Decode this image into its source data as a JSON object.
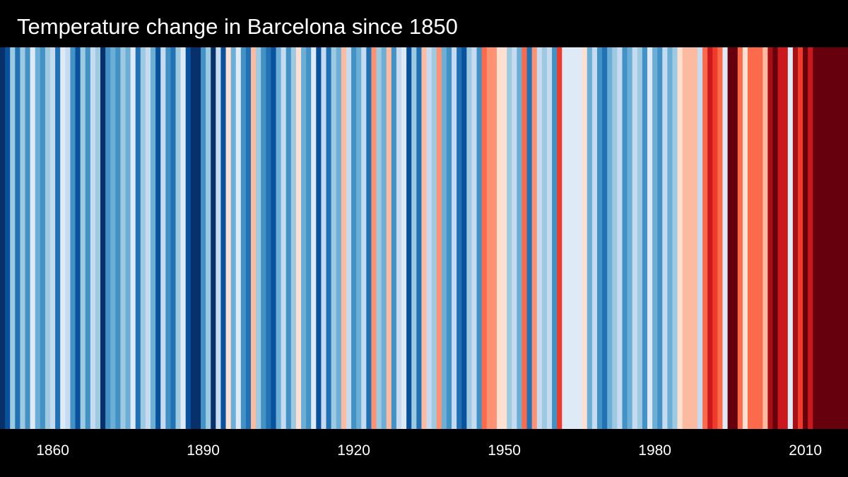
{
  "title": "Temperature change in Barcelona since 1850",
  "chart_data": {
    "type": "heatmap",
    "xlabel": "",
    "ylabel": "",
    "x_range": [
      1850,
      2018
    ],
    "x_tick_labels": [
      "1860",
      "1890",
      "1920",
      "1950",
      "1980",
      "2010"
    ],
    "x_ticks": [
      1860,
      1890,
      1920,
      1950,
      1980,
      2010
    ],
    "palette": [
      "#08306b",
      "#08519c",
      "#2171b5",
      "#4292c6",
      "#6baed6",
      "#9ecae1",
      "#c6dbef",
      "#deebf7",
      "#fee0d2",
      "#fcbba1",
      "#fc9272",
      "#fb6a4a",
      "#ef3b2c",
      "#cb181d",
      "#a50f15",
      "#67000d"
    ],
    "x": [
      1850,
      1851,
      1852,
      1853,
      1854,
      1855,
      1856,
      1857,
      1858,
      1859,
      1860,
      1861,
      1862,
      1863,
      1864,
      1865,
      1866,
      1867,
      1868,
      1869,
      1870,
      1871,
      1872,
      1873,
      1874,
      1875,
      1876,
      1877,
      1878,
      1879,
      1880,
      1881,
      1882,
      1883,
      1884,
      1885,
      1886,
      1887,
      1888,
      1889,
      1890,
      1891,
      1892,
      1893,
      1894,
      1895,
      1896,
      1897,
      1898,
      1899,
      1900,
      1901,
      1902,
      1903,
      1904,
      1905,
      1906,
      1907,
      1908,
      1909,
      1910,
      1911,
      1912,
      1913,
      1914,
      1915,
      1916,
      1917,
      1918,
      1919,
      1920,
      1921,
      1922,
      1923,
      1924,
      1925,
      1926,
      1927,
      1928,
      1929,
      1930,
      1931,
      1932,
      1933,
      1934,
      1935,
      1936,
      1937,
      1938,
      1939,
      1940,
      1941,
      1942,
      1943,
      1944,
      1945,
      1946,
      1947,
      1948,
      1949,
      1950,
      1951,
      1952,
      1953,
      1954,
      1955,
      1956,
      1957,
      1958,
      1959,
      1960,
      1961,
      1962,
      1963,
      1964,
      1965,
      1966,
      1967,
      1968,
      1969,
      1970,
      1971,
      1972,
      1973,
      1974,
      1975,
      1976,
      1977,
      1978,
      1979,
      1980,
      1981,
      1982,
      1983,
      1984,
      1985,
      1986,
      1987,
      1988,
      1989,
      1990,
      1991,
      1992,
      1993,
      1994,
      1995,
      1996,
      1997,
      1998,
      1999,
      2000,
      2001,
      2002,
      2003,
      2004,
      2005,
      2006,
      2007,
      2008,
      2009,
      2010,
      2011,
      2012,
      2013,
      2014,
      2015,
      2016,
      2017,
      2018
    ],
    "values": [
      0,
      1,
      5,
      2,
      5,
      3,
      7,
      4,
      3,
      5,
      6,
      2,
      7,
      6,
      3,
      1,
      5,
      3,
      6,
      5,
      0,
      3,
      4,
      3,
      5,
      4,
      7,
      2,
      5,
      6,
      4,
      1,
      6,
      3,
      2,
      5,
      7,
      1,
      0,
      0,
      3,
      5,
      0,
      6,
      1,
      8,
      4,
      7,
      3,
      2,
      9,
      5,
      3,
      2,
      1,
      4,
      6,
      3,
      5,
      8,
      4,
      3,
      7,
      1,
      6,
      2,
      5,
      4,
      9,
      6,
      3,
      4,
      6,
      2,
      10,
      5,
      4,
      9,
      3,
      6,
      7,
      1,
      5,
      2,
      9,
      6,
      5,
      10,
      4,
      3,
      6,
      2,
      1,
      5,
      6,
      3,
      11,
      10,
      10,
      8,
      8,
      5,
      6,
      4,
      11,
      2,
      10,
      6,
      5,
      6,
      3,
      12,
      7,
      7,
      7,
      7,
      8,
      4,
      6,
      3,
      2,
      4,
      5,
      6,
      3,
      4,
      6,
      5,
      3,
      7,
      4,
      3,
      6,
      4,
      5,
      8,
      9,
      9,
      9,
      6,
      11,
      13,
      12,
      11,
      7,
      15,
      15,
      11,
      8,
      11,
      11,
      11,
      9,
      14,
      15,
      13,
      13,
      7,
      14,
      12,
      15,
      13,
      15,
      15,
      15,
      15,
      15,
      15,
      15
    ]
  }
}
